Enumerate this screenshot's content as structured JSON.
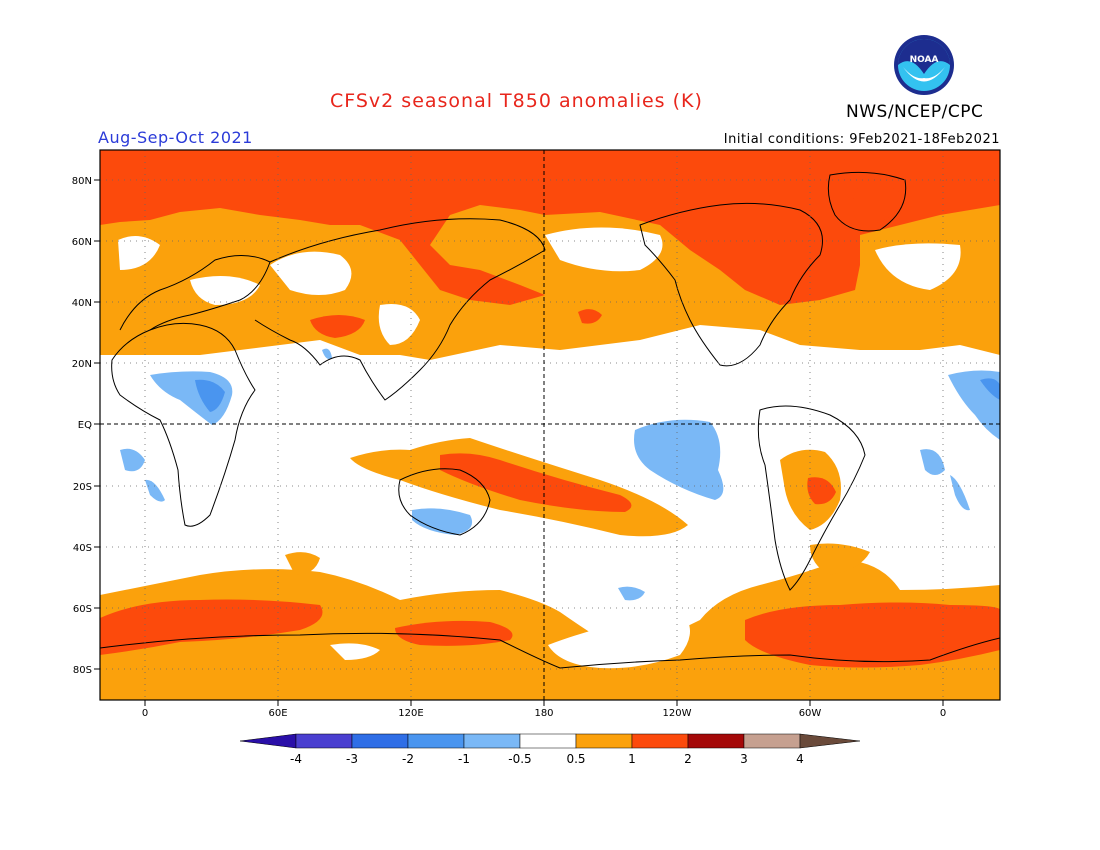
{
  "header": {
    "title": "CFSv2 seasonal T850 anomalies (K)",
    "season": "Aug-Sep-Oct 2021",
    "initial_conditions": "Initial conditions: 9Feb2021-18Feb2021",
    "agency": "NWS/NCEP/CPC",
    "logo_text": "NOAA"
  },
  "colors": {
    "title": "#e8261c",
    "season": "#2b3bd8",
    "neg4": "#2a0fa8",
    "neg3": "#4a3fd0",
    "neg2": "#2f6ee6",
    "neg1": "#4a95ef",
    "neg05": "#7ab8f6",
    "neutral": "#ffffff",
    "pos05": "#fba10c",
    "pos1": "#fc4a0c",
    "pos2": "#a40808",
    "pos3": "#c6a090",
    "pos4": "#6a4a3a"
  },
  "axes": {
    "lat_labels": [
      "80N",
      "60N",
      "40N",
      "20N",
      "EQ",
      "20S",
      "40S",
      "60S",
      "80S"
    ],
    "lon_labels": [
      "0",
      "60E",
      "120E",
      "180",
      "120W",
      "60W",
      "0"
    ]
  },
  "colorbar": {
    "labels": [
      "-4",
      "-3",
      "-2",
      "-1",
      "-0.5",
      "0.5",
      "1",
      "2",
      "3",
      "4"
    ]
  }
}
